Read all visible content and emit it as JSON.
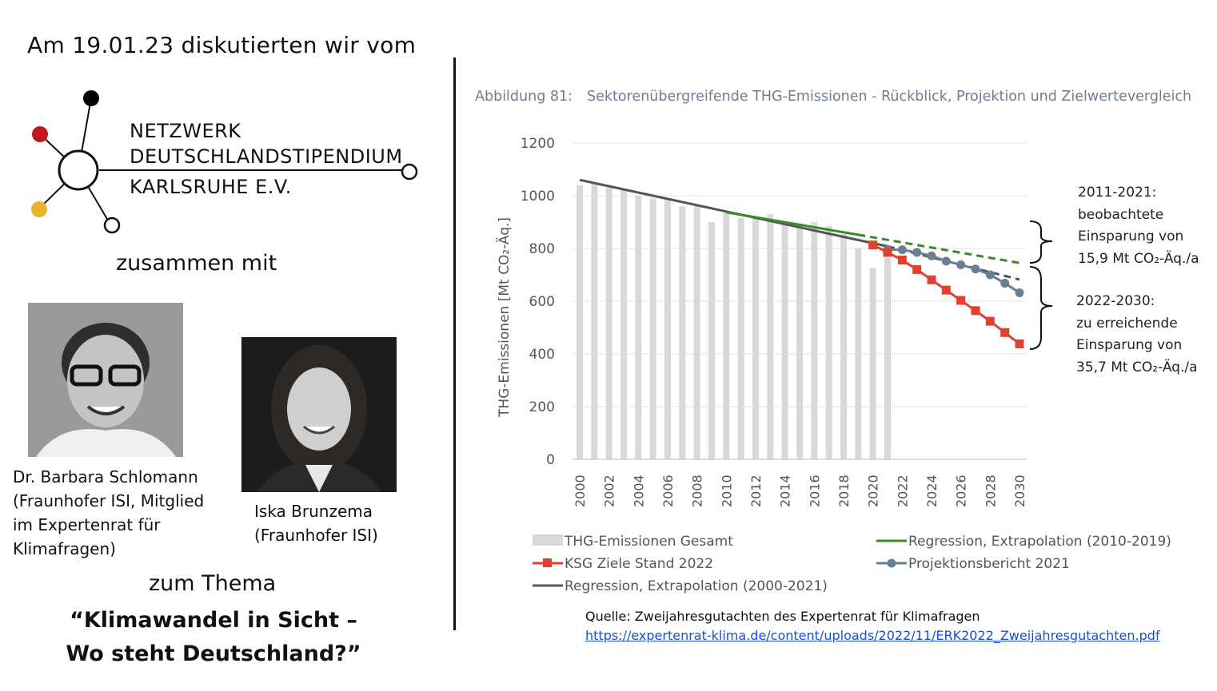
{
  "intro": "Am 19.01.23 diskutierten wir vom",
  "logo": {
    "line1": "NETZWERK",
    "line2": "DEUTSCHLANDSTIPENDIUM",
    "line3": "KARLSRUHE E.V.",
    "colors": {
      "dot_black": "#000000",
      "dot_red": "#c0161d",
      "dot_yellow": "#e6b42d"
    }
  },
  "zusammen": "zusammen mit",
  "person1": {
    "name": "Dr. Barbara Schlomann",
    "line2": "(Fraunhofer ISI, Mitglied",
    "line3": "im Expertenrat für",
    "line4": "Klimafragen)"
  },
  "person2": {
    "name": "Iska Brunzema",
    "line2": "(Fraunhofer ISI)"
  },
  "zum_thema": "zum Thema",
  "thema": {
    "line1": "“Klimawandel in Sicht –",
    "line2": "Wo steht Deutschland?”"
  },
  "figure": {
    "number": "Abbildung 81:",
    "title": "Sektorenübergreifende THG-Emissionen - Rückblick, Projektion und Zielwertevergleich"
  },
  "annotations": {
    "a1": [
      "2011-2021:",
      "beobachtete",
      "Einsparung von",
      "15,9 Mt CO₂-Äq./a"
    ],
    "a2": [
      "2022-2030:",
      "zu erreichende",
      "Einsparung von",
      "35,7 Mt CO₂-Äq./a"
    ]
  },
  "source": {
    "label": "Quelle: Zweijahresgutachten des Expertenrat für Klimafragen",
    "link": "https://expertenrat-klima.de/content/uploads/2022/11/ERK2022_Zweijahresgutachten.pdf"
  },
  "chart_data": {
    "type": "bar",
    "ylabel": "THG-Emissionen  [Mt CO₂-Äq.]",
    "ylim": [
      0,
      1200
    ],
    "yticks": [
      0,
      200,
      400,
      600,
      800,
      1000,
      1200
    ],
    "xticks": [
      "2000",
      "2002",
      "2004",
      "2006",
      "2008",
      "2010",
      "2012",
      "2014",
      "2016",
      "2018",
      "2020",
      "2022",
      "2024",
      "2026",
      "2028",
      "2030"
    ],
    "grid": true,
    "legend_position": "bottom",
    "colors": {
      "bars": "#d9d9d9",
      "regression_2010": "#3a8a2a",
      "ksg": "#e0402e",
      "projektion": "#6a7f94",
      "regression_2000": "#555555"
    },
    "bars": {
      "name": "THG-Emissionen Gesamt",
      "x": [
        2000,
        2001,
        2002,
        2003,
        2004,
        2005,
        2006,
        2007,
        2008,
        2009,
        2010,
        2011,
        2012,
        2013,
        2014,
        2015,
        2016,
        2017,
        2018,
        2019,
        2020,
        2021
      ],
      "values": [
        1040,
        1050,
        1030,
        1025,
        1000,
        990,
        985,
        960,
        965,
        900,
        940,
        915,
        920,
        930,
        890,
        895,
        900,
        885,
        855,
        800,
        725,
        765
      ]
    },
    "series": [
      {
        "name": "Regression, Extrapolation (2010-2019)",
        "x_solid": [
          2010,
          2019
        ],
        "y_solid": [
          937,
          852
        ],
        "x_dashed": [
          2019,
          2030
        ],
        "y_dashed": [
          852,
          745
        ]
      },
      {
        "name": "KSG Ziele Stand 2022",
        "x": [
          2020,
          2021,
          2022,
          2023,
          2024,
          2025,
          2026,
          2027,
          2028,
          2029,
          2030
        ],
        "values": [
          813,
          785,
          756,
          720,
          681,
          642,
          603,
          564,
          524,
          481,
          438
        ]
      },
      {
        "name": "Projektionsbericht 2021",
        "x": [
          2021,
          2022,
          2023,
          2024,
          2025,
          2026,
          2027,
          2028,
          2029,
          2030
        ],
        "values": [
          795,
          795,
          785,
          772,
          752,
          738,
          722,
          700,
          668,
          632
        ]
      },
      {
        "name": "Regression, Extrapolation (2000-2021)",
        "x_solid": [
          2000,
          2021
        ],
        "y_solid": [
          1060,
          808
        ],
        "x_dashed": [
          2021,
          2030
        ],
        "y_dashed": [
          808,
          682
        ]
      }
    ]
  }
}
